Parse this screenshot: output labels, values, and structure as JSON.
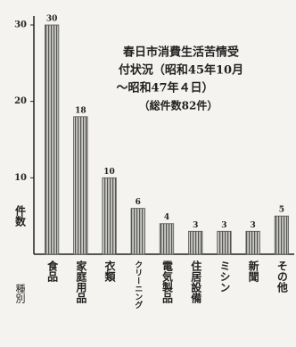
{
  "chart_data": {
    "type": "bar",
    "title_lines": [
      "春日市消費生活苦情受",
      "付状況（昭和45年10月",
      "〜昭和47年４日）",
      "（総件数82件）"
    ],
    "y_label": "件数",
    "x_label": "種別",
    "categories": [
      "食品",
      "家庭用品",
      "衣類",
      "クリーニング",
      "電気製品",
      "住居設備",
      "ミシン",
      "新聞",
      "その他"
    ],
    "values": [
      30,
      18,
      10,
      6,
      4,
      3,
      3,
      3,
      5
    ],
    "color": "#555555",
    "ylim": [
      0,
      30
    ],
    "yticks": [
      10,
      20,
      30
    ]
  }
}
